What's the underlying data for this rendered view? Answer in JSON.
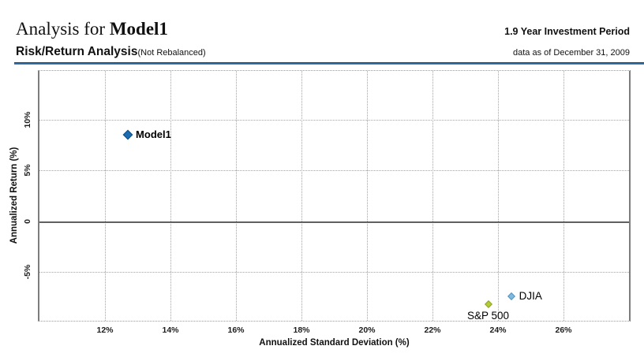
{
  "header": {
    "title_prefix": "Analysis for ",
    "title_model": "Model1",
    "investment_period": "1.9 Year Investment Period",
    "section_title": "Risk/Return Analysis",
    "section_subtitle": "(Not Rebalanced)",
    "data_as_of": "data as of December 31, 2009"
  },
  "colors": {
    "header_rule_top": "#14406e",
    "header_rule_bottom": "#4690cc",
    "gridline": "#a3a3a3",
    "zero_line": "#606060"
  },
  "chart_data": {
    "type": "scatter",
    "title": "Risk/Return Analysis (Not Rebalanced)",
    "xlabel": "Annualized Standard Deviation (%)",
    "ylabel": "Annualized Return (%)",
    "xlim": [
      10,
      28
    ],
    "ylim": [
      -9.8,
      14.8
    ],
    "grid": "dotted",
    "legend_position": "none",
    "xticks": [
      {
        "value": 12,
        "label": "12%"
      },
      {
        "value": 14,
        "label": "14%"
      },
      {
        "value": 16,
        "label": "16%"
      },
      {
        "value": 18,
        "label": "18%"
      },
      {
        "value": 20,
        "label": "20%"
      },
      {
        "value": 22,
        "label": "22%"
      },
      {
        "value": 24,
        "label": "24%"
      },
      {
        "value": 26,
        "label": "26%"
      }
    ],
    "yticks": [
      {
        "value": 10,
        "label": "10%"
      },
      {
        "value": 5,
        "label": "5%"
      },
      {
        "value": 0,
        "label": "0"
      },
      {
        "value": -5,
        "label": "-5%"
      }
    ],
    "points": [
      {
        "name": "Model1",
        "x": 12.7,
        "y": 8.5,
        "color": "#1b6cb0",
        "border_color": "#0f4c80",
        "size": 9,
        "label_position": "right",
        "label_bold": true
      },
      {
        "name": "S&P 500",
        "x": 23.7,
        "y": -8.2,
        "color": "#b3cb35",
        "border_color": "#8da426",
        "size": 7,
        "label_position": "below",
        "label_bold": false
      },
      {
        "name": "DJIA",
        "x": 24.4,
        "y": -7.4,
        "color": "#7db9e2",
        "border_color": "#5795bd",
        "size": 7,
        "label_position": "right",
        "label_bold": false
      }
    ]
  }
}
